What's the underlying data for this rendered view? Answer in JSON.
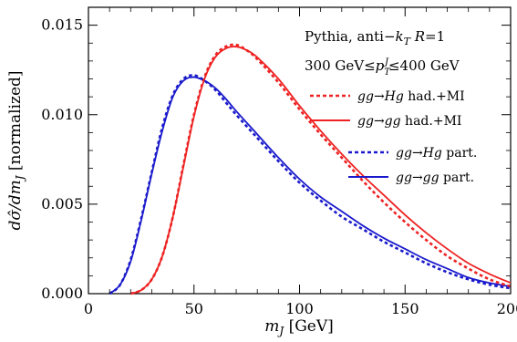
{
  "chart_data": {
    "type": "line",
    "xlabel": "m_J [GeV]",
    "ylabel": "dσ̂/dm_J [normalized]",
    "xlim": [
      0,
      200
    ],
    "ylim": [
      0,
      0.016
    ],
    "x_ticks": [
      0,
      50,
      100,
      150,
      200
    ],
    "x_tick_labels": [
      "0",
      "50",
      "100",
      "150",
      "200"
    ],
    "y_ticks": [
      0,
      0.005,
      0.01,
      0.015
    ],
    "y_tick_labels": [
      "0.000",
      "0.005",
      "0.010",
      "0.015"
    ],
    "grid": false,
    "legend_position": "top-right",
    "annotations": [
      "Pythia, anti−k_T R=1",
      "300 GeV≤p_T^J≤400 GeV"
    ],
    "colors": {
      "red": "#ee2222",
      "blue": "#1a1acc"
    },
    "series": [
      {
        "name": "gg→Hg had.+MI",
        "color": "#ee2222",
        "style": "dotted",
        "x": [
          20,
          25,
          30,
          35,
          40,
          45,
          50,
          55,
          60,
          65,
          70,
          75,
          80,
          90,
          100,
          110,
          120,
          130,
          140,
          150,
          160,
          170,
          180,
          190,
          200
        ],
        "y": [
          0.0,
          0.0002,
          0.0008,
          0.0021,
          0.0043,
          0.0072,
          0.01,
          0.0121,
          0.0133,
          0.0138,
          0.0139,
          0.0136,
          0.0131,
          0.0118,
          0.0103,
          0.0089,
          0.0076,
          0.0063,
          0.0051,
          0.004,
          0.003,
          0.0021,
          0.0014,
          0.0008,
          0.0004
        ]
      },
      {
        "name": "gg→gg had.+MI",
        "color": "#ee2222",
        "style": "solid",
        "x": [
          20,
          25,
          30,
          35,
          40,
          45,
          50,
          55,
          60,
          65,
          70,
          75,
          80,
          90,
          100,
          110,
          120,
          130,
          140,
          150,
          160,
          170,
          180,
          190,
          200
        ],
        "y": [
          0.0,
          0.0002,
          0.0008,
          0.0021,
          0.0043,
          0.0071,
          0.0099,
          0.012,
          0.0132,
          0.0137,
          0.0138,
          0.0136,
          0.0132,
          0.012,
          0.0105,
          0.0091,
          0.0078,
          0.0066,
          0.0055,
          0.0044,
          0.0034,
          0.0025,
          0.0017,
          0.0011,
          0.0006
        ]
      },
      {
        "name": "gg→Hg part.",
        "color": "#1a1acc",
        "style": "dotted",
        "x": [
          10,
          15,
          20,
          25,
          30,
          35,
          40,
          45,
          50,
          55,
          60,
          65,
          70,
          80,
          90,
          100,
          110,
          120,
          130,
          140,
          150,
          160,
          170,
          180,
          190,
          200
        ],
        "y": [
          0.0,
          0.0005,
          0.0019,
          0.0042,
          0.0068,
          0.0093,
          0.0111,
          0.012,
          0.0122,
          0.0119,
          0.0114,
          0.0107,
          0.01,
          0.0087,
          0.0074,
          0.0062,
          0.0052,
          0.0043,
          0.0036,
          0.0029,
          0.0023,
          0.0017,
          0.0012,
          0.0008,
          0.0005,
          0.0003
        ]
      },
      {
        "name": "gg→gg part.",
        "color": "#1a1acc",
        "style": "solid",
        "x": [
          10,
          15,
          20,
          25,
          30,
          35,
          40,
          45,
          50,
          55,
          60,
          65,
          70,
          80,
          90,
          100,
          110,
          120,
          130,
          140,
          150,
          160,
          170,
          180,
          190,
          200
        ],
        "y": [
          0.0,
          0.0005,
          0.0018,
          0.0041,
          0.0067,
          0.0091,
          0.011,
          0.0119,
          0.0121,
          0.0119,
          0.0115,
          0.0109,
          0.0102,
          0.0089,
          0.0076,
          0.0064,
          0.0054,
          0.0046,
          0.0038,
          0.0031,
          0.0025,
          0.0019,
          0.0014,
          0.0009,
          0.0006,
          0.0004
        ]
      }
    ]
  }
}
